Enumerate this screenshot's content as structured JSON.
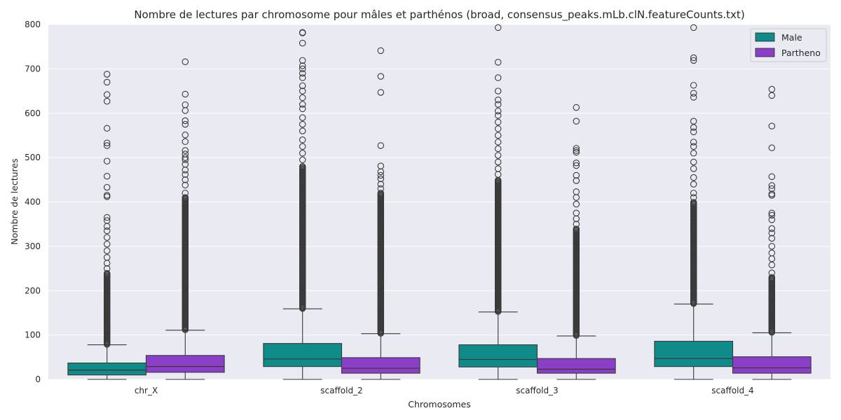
{
  "chart_data": {
    "type": "boxplot",
    "title": "Nombre de lectures par chromosome pour mâles et parthénos (broad, consensus_peaks.mLb.clN.featureCounts.txt)",
    "xlabel": "Chromosomes",
    "ylabel": "Nombre de lectures",
    "ylim": [
      0,
      800
    ],
    "yticks": [
      0,
      100,
      200,
      300,
      400,
      500,
      600,
      700,
      800
    ],
    "categories": [
      "chr_X",
      "scaffold_2",
      "scaffold_3",
      "scaffold_4"
    ],
    "grid": true,
    "legend_position": "top-right",
    "series": [
      {
        "name": "Male",
        "color": "#0f8c8a",
        "boxes": [
          {
            "min": 0,
            "q1": 10,
            "median": 21,
            "q3": 37,
            "max": 78,
            "outlier_band": [
              78,
              240
            ],
            "outliers": [
              250,
              262,
              275,
              290,
              305,
              320,
              335,
              345,
              358,
              365,
              412,
              415,
              433,
              458,
              492,
              527,
              533,
              566,
              627,
              642,
              670,
              688
            ]
          },
          {
            "min": 0,
            "q1": 29,
            "median": 46,
            "q3": 81,
            "max": 159,
            "outlier_band": [
              159,
              480
            ],
            "outliers": [
              495,
              510,
              525,
              540,
              560,
              575,
              590,
              610,
              620,
              635,
              650,
              662,
              680,
              690,
              700,
              707,
              719,
              758,
              781,
              782
            ]
          },
          {
            "min": 0,
            "q1": 28,
            "median": 45,
            "q3": 78,
            "max": 152,
            "outlier_band": [
              152,
              450
            ],
            "outliers": [
              462,
              475,
              490,
              505,
              520,
              535,
              550,
              565,
              580,
              595,
              605,
              620,
              630,
              650,
              680,
              715,
              793
            ]
          },
          {
            "min": 0,
            "q1": 29,
            "median": 47,
            "q3": 86,
            "max": 170,
            "outlier_band": [
              170,
              400
            ],
            "outliers": [
              410,
              420,
              440,
              455,
              475,
              490,
              510,
              525,
              535,
              558,
              568,
              582,
              636,
              645,
              663,
              719,
              725,
              793
            ]
          }
        ]
      },
      {
        "name": "Partheno",
        "color": "#8b3fc9",
        "boxes": [
          {
            "min": 0,
            "q1": 16,
            "median": 29,
            "q3": 54,
            "max": 111,
            "outlier_band": [
              111,
              410
            ],
            "outliers": [
              420,
              438,
              450,
              462,
              472,
              485,
              495,
              500,
              508,
              516,
              536,
              551,
              575,
              583,
              606,
              619,
              643,
              716
            ]
          },
          {
            "min": 0,
            "q1": 14,
            "median": 25,
            "q3": 49,
            "max": 103,
            "outlier_band": [
              103,
              420
            ],
            "outliers": [
              430,
              440,
              452,
              460,
              468,
              481,
              527,
              647,
              683,
              741
            ]
          },
          {
            "min": 0,
            "q1": 14,
            "median": 23,
            "q3": 47,
            "max": 98,
            "outlier_band": [
              98,
              340
            ],
            "outliers": [
              350,
              362,
              375,
              395,
              410,
              423,
              448,
              460,
              482,
              488,
              512,
              516,
              521,
              582,
              613
            ]
          },
          {
            "min": 0,
            "q1": 14,
            "median": 26,
            "q3": 51,
            "max": 105,
            "outlier_band": [
              105,
              230
            ],
            "outliers": [
              240,
              258,
              272,
              285,
              300,
              318,
              330,
              340,
              360,
              370,
              375,
              415,
              418,
              430,
              437,
              457,
              522,
              571,
              640,
              654
            ]
          }
        ]
      }
    ]
  }
}
